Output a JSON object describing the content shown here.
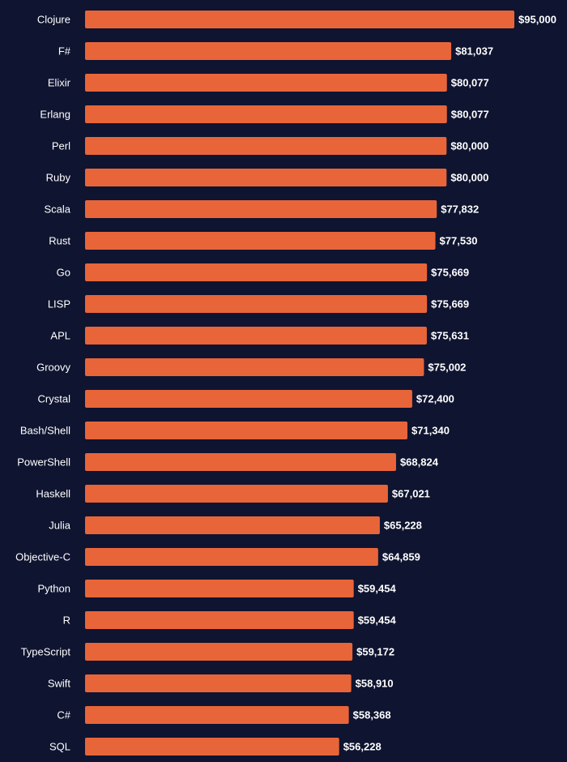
{
  "chart_data": {
    "type": "bar",
    "orientation": "horizontal",
    "title": "",
    "xlabel": "",
    "ylabel": "",
    "grid": false,
    "legend": "none",
    "bar_color": "#e8653a",
    "background_color": "#0f1430",
    "text_color": "#ffffff",
    "xlim": [
      0,
      95000
    ],
    "categories": [
      "Clojure",
      "F#",
      "Elixir",
      "Erlang",
      "Perl",
      "Ruby",
      "Scala",
      "Rust",
      "Go",
      "LISP",
      "APL",
      "Groovy",
      "Crystal",
      "Bash/Shell",
      "PowerShell",
      "Haskell",
      "Julia",
      "Objective-C",
      "Python",
      "R",
      "TypeScript",
      "Swift",
      "C#",
      "SQL"
    ],
    "values": [
      95000,
      81037,
      80077,
      80077,
      80000,
      80000,
      77832,
      77530,
      75669,
      75669,
      75631,
      75002,
      72400,
      71340,
      68824,
      67021,
      65228,
      64859,
      59454,
      59454,
      59172,
      58910,
      58368,
      56228
    ],
    "value_labels": [
      "$95,000",
      "$81,037",
      "$80,077",
      "$80,077",
      "$80,000",
      "$80,000",
      "$77,832",
      "$77,530",
      "$75,669",
      "$75,669",
      "$75,631",
      "$75,002",
      "$72,400",
      "$71,340",
      "$68,824",
      "$67,021",
      "$65,228",
      "$64,859",
      "$59,454",
      "$59,454",
      "$59,172",
      "$58,910",
      "$58,368",
      "$56,228"
    ]
  }
}
